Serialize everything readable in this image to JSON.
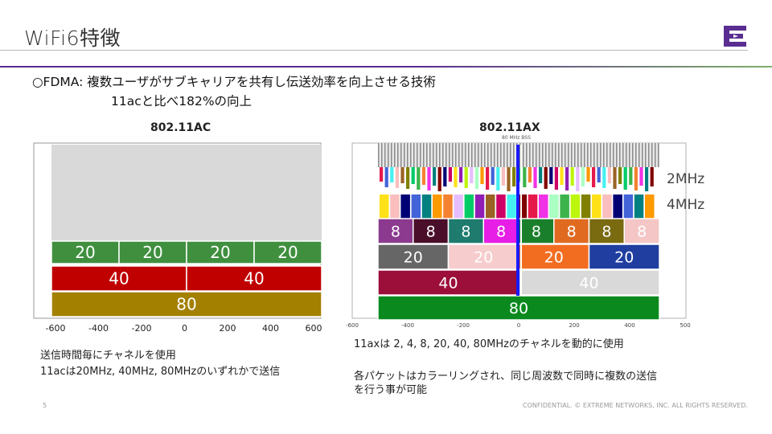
{
  "slide": {
    "title": "WiFi6特徴",
    "line1": "○FDMA:  複数ユーザがサブキャリアを共有し伝送効率を向上させる技術",
    "line2": "11acと比べ182%の向上",
    "left_heading": "802.11AC",
    "right_heading": "802.11AX",
    "bss_label": "80 MHz BSS",
    "left_note_1": "送信時間毎にチャネルを使用",
    "left_note_2": "11acは20MHz, 40MHz, 80MHzのいずれかで送信",
    "right_note_1": "11axは 2, 4, 8, 20, 40, 80MHzのチャネルを動的に使用",
    "right_note_2": "各パケットはカラーリングされ、同じ周波数で同時に複数の送信",
    "right_note_3": "を行う事が可能",
    "page_number": "5",
    "footer": "CONFIDENTIAL. © EXTREME NETWORKS, INC. ALL RIGHTS RESERVED.",
    "label_2mhz": "2MHz",
    "label_4mhz": "4MHz"
  },
  "ac_diagram": {
    "ticks": [
      "-600",
      "-400",
      "-200",
      "0",
      "200",
      "400",
      "600"
    ],
    "row20": {
      "labels": [
        "20",
        "20",
        "20",
        "20"
      ],
      "color": "#3f8f3f"
    },
    "row40": {
      "labels": [
        "40",
        "40"
      ],
      "color": "#c00000"
    },
    "row80": {
      "labels": [
        "80"
      ],
      "color": "#a38000"
    },
    "background": "#d9d9d9"
  },
  "ax_diagram": {
    "ticks": [
      "-600",
      "-400",
      "-200",
      "0",
      "200",
      "400",
      "500"
    ],
    "row8": {
      "labels": [
        "8",
        "8",
        "8",
        "8",
        "8",
        "8",
        "8",
        "8"
      ],
      "colors": [
        "#8b3a8f",
        "#4a0d2a",
        "#1e7b6e",
        "#e61ee6",
        "#1a7f2a",
        "#e06a20",
        "#7a6a10",
        "#f4c6c6"
      ]
    },
    "row20": {
      "labels": [
        "20",
        "20",
        "20",
        "20"
      ],
      "colors": [
        "#666666",
        "#f6cccc",
        "#f36d21",
        "#1f3ea0"
      ]
    },
    "row40": {
      "labels": [
        "40",
        "40"
      ],
      "colors": [
        "#9b0f3a",
        "#d9d9d9"
      ]
    },
    "row80": {
      "labels": [
        "80"
      ],
      "colors": [
        "#0a8a1e"
      ]
    },
    "center_line_color": "#1a1aff"
  }
}
